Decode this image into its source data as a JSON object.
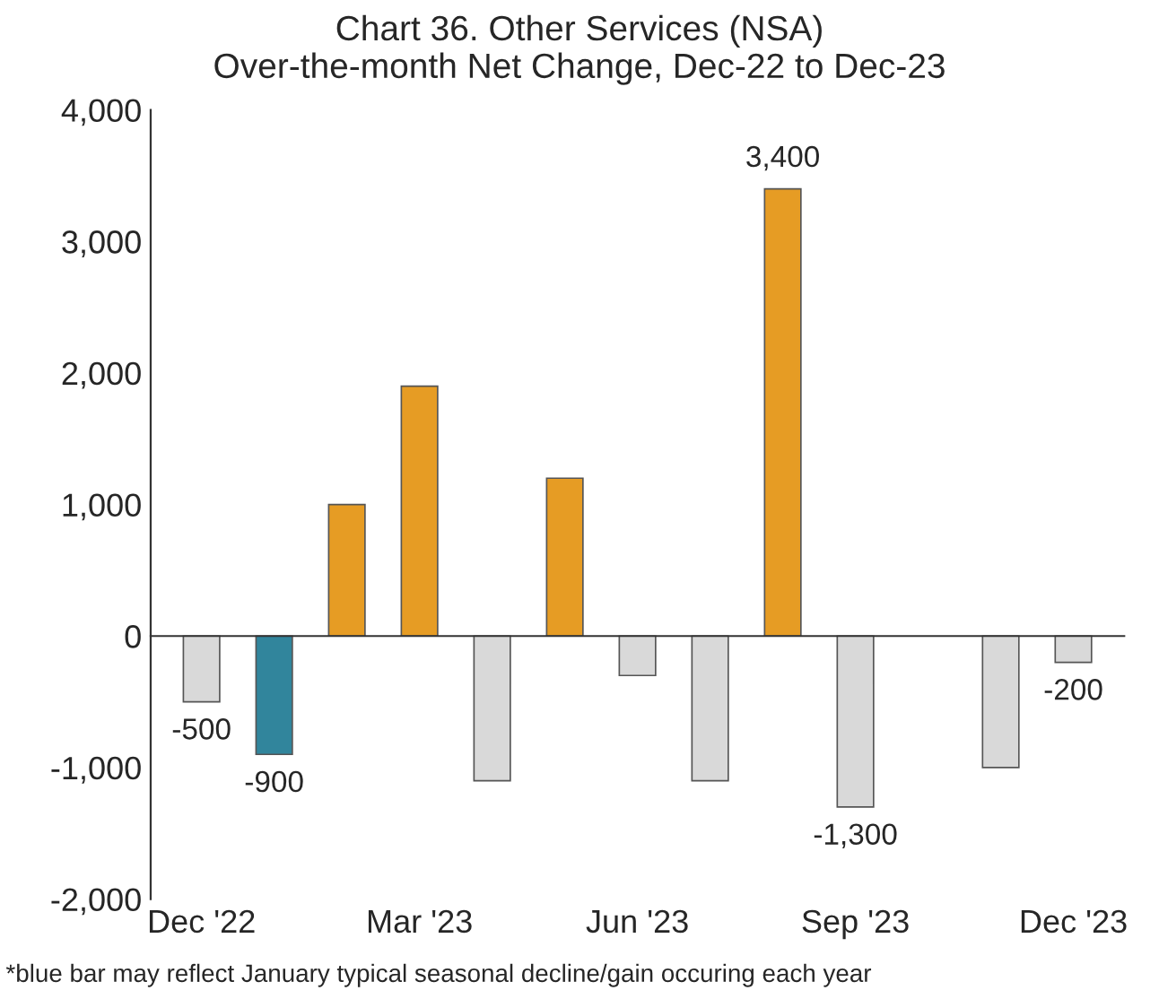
{
  "chart_data": {
    "type": "bar",
    "title": "Chart 36. Other Services (NSA)\nOver-the-month Net Change, Dec-22 to Dec-23",
    "categories": [
      "Dec '22",
      null,
      null,
      "Mar '23",
      null,
      null,
      "Jun '23",
      null,
      null,
      "Sep '23",
      null,
      null,
      "Dec '23"
    ],
    "values": [
      -500,
      -900,
      1000,
      1900,
      -1100,
      1200,
      -300,
      -1100,
      3400,
      -1300,
      null,
      -1000,
      -200
    ],
    "colors": [
      "#d9d9d9",
      "#31859c",
      "#e69c24",
      "#e69c24",
      "#d9d9d9",
      "#e69c24",
      "#d9d9d9",
      "#d9d9d9",
      "#e69c24",
      "#d9d9d9",
      "#d9d9d9",
      "#d9d9d9",
      "#d9d9d9"
    ],
    "value_labels": [
      "-500",
      "-900",
      null,
      null,
      null,
      null,
      null,
      null,
      "3,400",
      "-1,300",
      null,
      null,
      "-200"
    ],
    "ylim": [
      -2000,
      4000
    ],
    "yticks": [
      {
        "value": -2000,
        "label": "-2,000"
      },
      {
        "value": -1000,
        "label": "-1,000"
      },
      0,
      {
        "value": 1000,
        "label": "1,000"
      },
      {
        "value": 2000,
        "label": "2,000"
      },
      {
        "value": 3000,
        "label": "3,000"
      },
      {
        "value": 4000,
        "label": "4,000"
      }
    ],
    "legend": false,
    "annotations": [
      "*blue bar may reflect January typical seasonal decline/gain occuring each year"
    ]
  }
}
